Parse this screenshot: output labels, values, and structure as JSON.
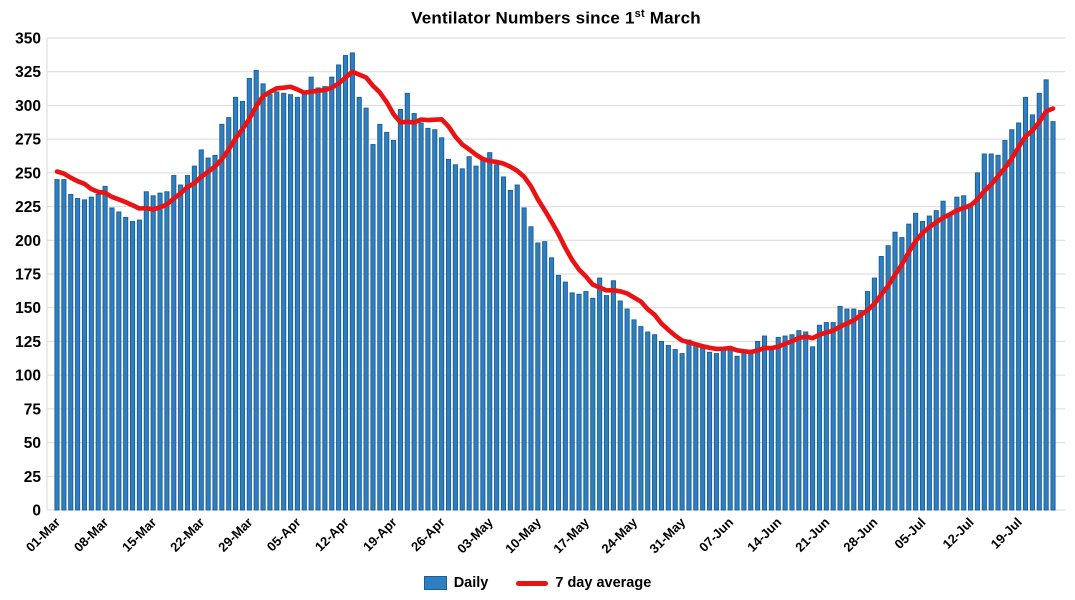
{
  "title": {
    "prefix": "Ventilator Numbers since 1",
    "ordinal_suffix": "st",
    "suffix": " March"
  },
  "legend": {
    "daily_label": "Daily",
    "avg_label": "7 day average"
  },
  "colors": {
    "bar_fill": "#2e7fc2",
    "bar_stroke": "#1c5d92",
    "avg_line": "#ea1212",
    "gridline": "#d9d9d9",
    "text": "#000000",
    "background": "#ffffff"
  },
  "chart_data": {
    "type": "bar",
    "title": "Ventilator Numbers since 1st March",
    "xlabel": "",
    "ylabel": "",
    "ylim": [
      0,
      350
    ],
    "y_tick_step": 25,
    "y_ticks": [
      0,
      25,
      50,
      75,
      100,
      125,
      150,
      175,
      200,
      225,
      250,
      275,
      300,
      325,
      350
    ],
    "grid": "horizontal",
    "legend_position": "bottom",
    "x_start_label": "01-Mar",
    "x_tick_every": 7,
    "x_tick_labels": [
      "01-Mar",
      "08-Mar",
      "15-Mar",
      "22-Mar",
      "29-Mar",
      "05-Apr",
      "12-Apr",
      "19-Apr",
      "26-Apr",
      "03-May",
      "10-May",
      "17-May",
      "24-May",
      "31-May",
      "07-Jun",
      "14-Jun",
      "21-Jun",
      "28-Jun",
      "05-Jul",
      "12-Jul",
      "19-Jul"
    ],
    "n_points": 146,
    "series": [
      {
        "name": "Daily",
        "type": "bar",
        "values": [
          245,
          245,
          234,
          231,
          230,
          232,
          234,
          240,
          224,
          221,
          217,
          214,
          215,
          236,
          233,
          235,
          236,
          248,
          241,
          248,
          255,
          267,
          261,
          263,
          286,
          291,
          306,
          303,
          320,
          326,
          316,
          308,
          310,
          309,
          308,
          306,
          309,
          321,
          313,
          314,
          321,
          330,
          337,
          339,
          306,
          298,
          271,
          286,
          280,
          274,
          297,
          309,
          294,
          287,
          283,
          282,
          276,
          260,
          256,
          253,
          262,
          255,
          260,
          265,
          256,
          247,
          237,
          241,
          224,
          210,
          198,
          199,
          187,
          174,
          169,
          161,
          160,
          162,
          157,
          172,
          159,
          170,
          155,
          149,
          141,
          136,
          132,
          130,
          125,
          122,
          119,
          116,
          126,
          122,
          120,
          117,
          116,
          120,
          120,
          114,
          117,
          116,
          125,
          129,
          119,
          128,
          129,
          130,
          133,
          132,
          121,
          137,
          139,
          139,
          151,
          149,
          149,
          148,
          162,
          172,
          188,
          196,
          206,
          202,
          212,
          220,
          214,
          218,
          222,
          229,
          220,
          232,
          233,
          227,
          250,
          264,
          264,
          263,
          274,
          282,
          287,
          306,
          293,
          309,
          319,
          288
        ]
      },
      {
        "name": "7 day average",
        "type": "line",
        "window": 7,
        "derived_from": "Daily",
        "seed_values": [
          259,
          249
        ]
      }
    ]
  }
}
